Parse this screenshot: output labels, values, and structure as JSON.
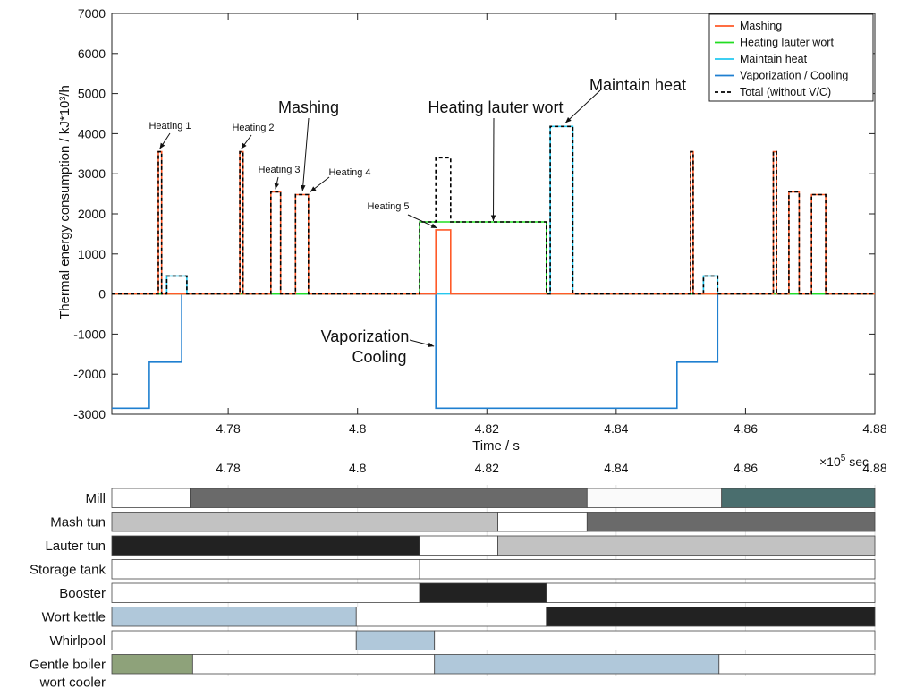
{
  "chart_data": [
    {
      "type": "line",
      "xlabel": "Time / s",
      "ylabel": "Thermal energy consumption /  kJ*10³/h",
      "x_exponent_label": "×10",
      "x_exponent_sup": "5",
      "x_exponent_unit": " sec",
      "xlim": [
        4.762,
        4.88
      ],
      "ylim": [
        -3000,
        7000
      ],
      "xticks": [
        4.78,
        4.8,
        4.82,
        4.84,
        4.86,
        4.88
      ],
      "yticks": [
        -3000,
        -2000,
        -1000,
        0,
        1000,
        2000,
        3000,
        4000,
        5000,
        6000,
        7000
      ],
      "grid": false,
      "legend_position": "top-right",
      "series": [
        {
          "name": "Mashing",
          "color": "#ff5a28",
          "style": "solid",
          "x": [
            4.762,
            4.7692,
            4.7692,
            4.7697,
            4.7697,
            4.7818,
            4.7818,
            4.7823,
            4.7823,
            4.7866,
            4.7866,
            4.7881,
            4.7881,
            4.7904,
            4.7904,
            4.7924,
            4.7924,
            4.8121,
            4.8121,
            4.8144,
            4.8144,
            4.8515,
            4.8515,
            4.8519,
            4.8519,
            4.8643,
            4.8643,
            4.8648,
            4.8648,
            4.8667,
            4.8667,
            4.8683,
            4.8683,
            4.8702,
            4.8702,
            4.8724,
            4.8724,
            4.88
          ],
          "y": [
            0,
            0,
            3550,
            3550,
            0,
            0,
            3550,
            3550,
            0,
            0,
            2550,
            2550,
            0,
            0,
            2480,
            2480,
            0,
            0,
            1600,
            1600,
            0,
            0,
            3550,
            3550,
            0,
            0,
            3550,
            3550,
            0,
            0,
            2550,
            2550,
            0,
            0,
            2480,
            2480,
            0,
            0
          ]
        },
        {
          "name": "Heating lauter wort",
          "color": "#22dd22",
          "style": "solid",
          "x": [
            4.762,
            4.7705,
            4.7705,
            4.772,
            4.772,
            4.8096,
            4.8096,
            4.8292,
            4.8292,
            4.8298,
            4.8298,
            4.8331,
            4.8331,
            4.8535,
            4.8535,
            4.855,
            4.855,
            4.88
          ],
          "y": [
            0,
            0,
            0,
            0,
            0,
            0,
            1800,
            1800,
            0,
            0,
            0,
            0,
            0,
            0,
            0,
            0,
            0,
            0
          ]
        },
        {
          "name": "Maintain heat",
          "color": "#22c8f0",
          "style": "solid",
          "x": [
            4.762,
            4.7705,
            4.7705,
            4.7736,
            4.7736,
            4.8298,
            4.8298,
            4.8333,
            4.8333,
            4.8535,
            4.8535,
            4.8557,
            4.8557,
            4.88
          ],
          "y": [
            0,
            0,
            450,
            450,
            0,
            0,
            4180,
            4180,
            0,
            0,
            450,
            450,
            0,
            0
          ]
        },
        {
          "name": "Vaporization / Cooling",
          "color": "#1f7fd0",
          "style": "solid",
          "x": [
            4.762,
            4.7678,
            4.7678,
            4.7728,
            4.7728,
            4.8121,
            4.8121,
            4.8494,
            4.8494,
            4.8557,
            4.8557,
            4.88
          ],
          "y": [
            -2850,
            -2850,
            -1700,
            -1700,
            0,
            0,
            -2850,
            -2850,
            -1700,
            -1700,
            0,
            0
          ]
        },
        {
          "name": "Total (without V/C)",
          "color": "#000000",
          "style": "dashed",
          "x": [
            4.762,
            4.7692,
            4.7692,
            4.7697,
            4.7697,
            4.7705,
            4.7705,
            4.7736,
            4.7736,
            4.7818,
            4.7818,
            4.7823,
            4.7823,
            4.7866,
            4.7866,
            4.7881,
            4.7881,
            4.7904,
            4.7904,
            4.7924,
            4.7924,
            4.8096,
            4.8096,
            4.8121,
            4.8121,
            4.8144,
            4.8144,
            4.8292,
            4.8292,
            4.8298,
            4.8298,
            4.8333,
            4.8333,
            4.8515,
            4.8515,
            4.8519,
            4.8519,
            4.8535,
            4.8535,
            4.8557,
            4.8557,
            4.8643,
            4.8643,
            4.8648,
            4.8648,
            4.8667,
            4.8667,
            4.8683,
            4.8683,
            4.8702,
            4.8702,
            4.8724,
            4.8724,
            4.88
          ],
          "y": [
            0,
            0,
            3550,
            3550,
            0,
            0,
            450,
            450,
            0,
            0,
            3550,
            3550,
            0,
            0,
            2550,
            2550,
            0,
            0,
            2480,
            2480,
            0,
            0,
            1800,
            1800,
            3400,
            3400,
            1800,
            1800,
            0,
            0,
            4180,
            4180,
            0,
            0,
            3550,
            3550,
            0,
            0,
            450,
            450,
            0,
            0,
            3550,
            3550,
            0,
            0,
            2550,
            2550,
            0,
            0,
            2480,
            2480,
            0,
            0
          ]
        }
      ],
      "annotations": [
        {
          "text": "Heating 1",
          "x": 4.7694,
          "y": 3550,
          "size": "small"
        },
        {
          "text": "Heating 2",
          "x": 4.782,
          "y": 3550,
          "size": "small"
        },
        {
          "text": "Heating 3",
          "x": 4.7873,
          "y": 2550,
          "size": "small"
        },
        {
          "text": "Heating 4",
          "x": 4.7924,
          "y": 2480,
          "size": "small"
        },
        {
          "text": "Heating 5",
          "x": 4.8123,
          "y": 1600,
          "size": "small"
        },
        {
          "text": "Mashing",
          "x": 4.7915,
          "y": 2480,
          "size": "large"
        },
        {
          "text": "Heating lauter wort",
          "x": 4.821,
          "y": 1800,
          "size": "large"
        },
        {
          "text": "Maintain heat",
          "x": 4.8316,
          "y": 4180,
          "size": "large"
        },
        {
          "text": "Vaporization",
          "x": 4.8121,
          "y": -1250,
          "size": "large"
        },
        {
          "text": "Cooling",
          "x": 4.8121,
          "y": -1250,
          "size": "large"
        }
      ]
    },
    {
      "type": "gantt",
      "xlim": [
        4.762,
        4.88
      ],
      "xticks": [
        4.78,
        4.8,
        4.82,
        4.84,
        4.86,
        4.88
      ],
      "rows": [
        {
          "name": "Mill",
          "segments": [
            {
              "start": 4.762,
              "end": 4.7741,
              "color": "#ffffff"
            },
            {
              "start": 4.7741,
              "end": 4.8355,
              "color": "#6a6a6a"
            },
            {
              "start": 4.8355,
              "end": 4.8563,
              "color": "#fafafa"
            },
            {
              "start": 4.8563,
              "end": 4.88,
              "color": "#4a6e6e"
            }
          ]
        },
        {
          "name": "Mash tun",
          "segments": [
            {
              "start": 4.762,
              "end": 4.8217,
              "color": "#c2c2c2"
            },
            {
              "start": 4.8217,
              "end": 4.8355,
              "color": "#ffffff"
            },
            {
              "start": 4.8355,
              "end": 4.88,
              "color": "#6a6a6a"
            }
          ]
        },
        {
          "name": "Lauter tun",
          "segments": [
            {
              "start": 4.762,
              "end": 4.8096,
              "color": "#222222"
            },
            {
              "start": 4.8096,
              "end": 4.8217,
              "color": "#ffffff"
            },
            {
              "start": 4.8217,
              "end": 4.88,
              "color": "#c2c2c2"
            }
          ]
        },
        {
          "name": "Storage tank",
          "segments": [
            {
              "start": 4.762,
              "end": 4.8096,
              "color": "#ffffff"
            },
            {
              "start": 4.8096,
              "end": 4.88,
              "color": "#ffffff"
            }
          ]
        },
        {
          "name": "Booster",
          "segments": [
            {
              "start": 4.762,
              "end": 4.8096,
              "color": "#ffffff"
            },
            {
              "start": 4.8096,
              "end": 4.8292,
              "color": "#222222"
            },
            {
              "start": 4.8292,
              "end": 4.88,
              "color": "#ffffff"
            }
          ]
        },
        {
          "name": "Wort kettle",
          "segments": [
            {
              "start": 4.762,
              "end": 4.7998,
              "color": "#b0c8da"
            },
            {
              "start": 4.7998,
              "end": 4.8292,
              "color": "#ffffff"
            },
            {
              "start": 4.8292,
              "end": 4.88,
              "color": "#222222"
            }
          ]
        },
        {
          "name": "Whirlpool",
          "segments": [
            {
              "start": 4.762,
              "end": 4.7998,
              "color": "#ffffff"
            },
            {
              "start": 4.7998,
              "end": 4.8119,
              "color": "#b0c8da"
            },
            {
              "start": 4.8119,
              "end": 4.88,
              "color": "#ffffff"
            }
          ]
        },
        {
          "name": "Gentle boiler\nwort cooler",
          "segments": [
            {
              "start": 4.762,
              "end": 4.7745,
              "color": "#8ea27a"
            },
            {
              "start": 4.7745,
              "end": 4.8119,
              "color": "#ffffff"
            },
            {
              "start": 4.8119,
              "end": 4.8559,
              "color": "#b0c8da"
            },
            {
              "start": 4.8559,
              "end": 4.88,
              "color": "#ffffff"
            }
          ]
        }
      ]
    }
  ]
}
